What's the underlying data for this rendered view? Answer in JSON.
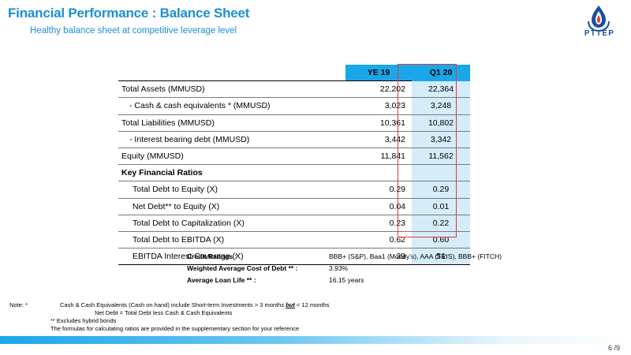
{
  "header": {
    "title": "Financial Performance : Balance Sheet",
    "subtitle": "Healthy balance sheet at competitive leverage level",
    "logo_text": "PTTEP"
  },
  "table": {
    "columns": [
      "YE 19",
      "Q1 20"
    ],
    "rows": [
      {
        "label": "Total Assets (MMUSD)",
        "ye19": "22,202",
        "q120": "22,364",
        "indent": 0
      },
      {
        "label": "- Cash & cash equivalents * (MMUSD)",
        "ye19": "3,023",
        "q120": "3,248",
        "indent": 1
      },
      {
        "label": "Total Liabilities (MMUSD)",
        "ye19": "10,361",
        "q120": "10,802",
        "indent": 0
      },
      {
        "label": "- Interest bearing debt (MMUSD)",
        "ye19": "3,442",
        "q120": "3,342",
        "indent": 1
      },
      {
        "label": "Equity (MMUSD)",
        "ye19": "11,841",
        "q120": "11,562",
        "indent": 0
      },
      {
        "label": "Key Financial Ratios",
        "ye19": "",
        "q120": "",
        "indent": 0,
        "bold": true
      },
      {
        "label": "Total Debt to Equity (X)",
        "ye19": "0.29",
        "q120": "0.29",
        "indent": 2
      },
      {
        "label": "Net Debt** to Equity (X)",
        "ye19": "0.04",
        "q120": "0.01",
        "indent": 2
      },
      {
        "label": "Total Debt to Capitalization (X)",
        "ye19": "0.23",
        "q120": "0.22",
        "indent": 2
      },
      {
        "label": "Total Debt to EBITDA (X)",
        "ye19": "0.62",
        "q120": "0.60",
        "indent": 2
      },
      {
        "label": "EBITDA Interest Coverage (X)",
        "ye19": "39",
        "q120": "51",
        "indent": 2
      }
    ]
  },
  "credit": {
    "ratings_label": "Credit Ratings :",
    "ratings_value": "BBB+ (S&P), Baa1 (Moody’s),  AAA (TRIS), BBB+ (FITCH)",
    "cost_label": "Weighted Average Cost of Debt ** :",
    "cost_value": "3.93%",
    "life_label": "Average Loan Life ** :",
    "life_value": "16.15 years"
  },
  "notes": {
    "prefix": "Note:   *",
    "line1a": "Cash & Cash Equivalents (Cash on hand) include Short-term Investments > 3 months ",
    "line1b": "but",
    "line1c": " < 12 months",
    "line2": "Net Debt = Total Debt less Cash & Cash Equivalents",
    "line3": "**   Excludes hybrid bonds",
    "line4": "The formulas for calculating ratios are provided in the supplementary section for your reference"
  },
  "footer": {
    "page": "6 /9"
  },
  "colors": {
    "accent": "#1aa7ea",
    "highlight_border": "#e53935",
    "highlight_fill": "#d5ecf9"
  }
}
